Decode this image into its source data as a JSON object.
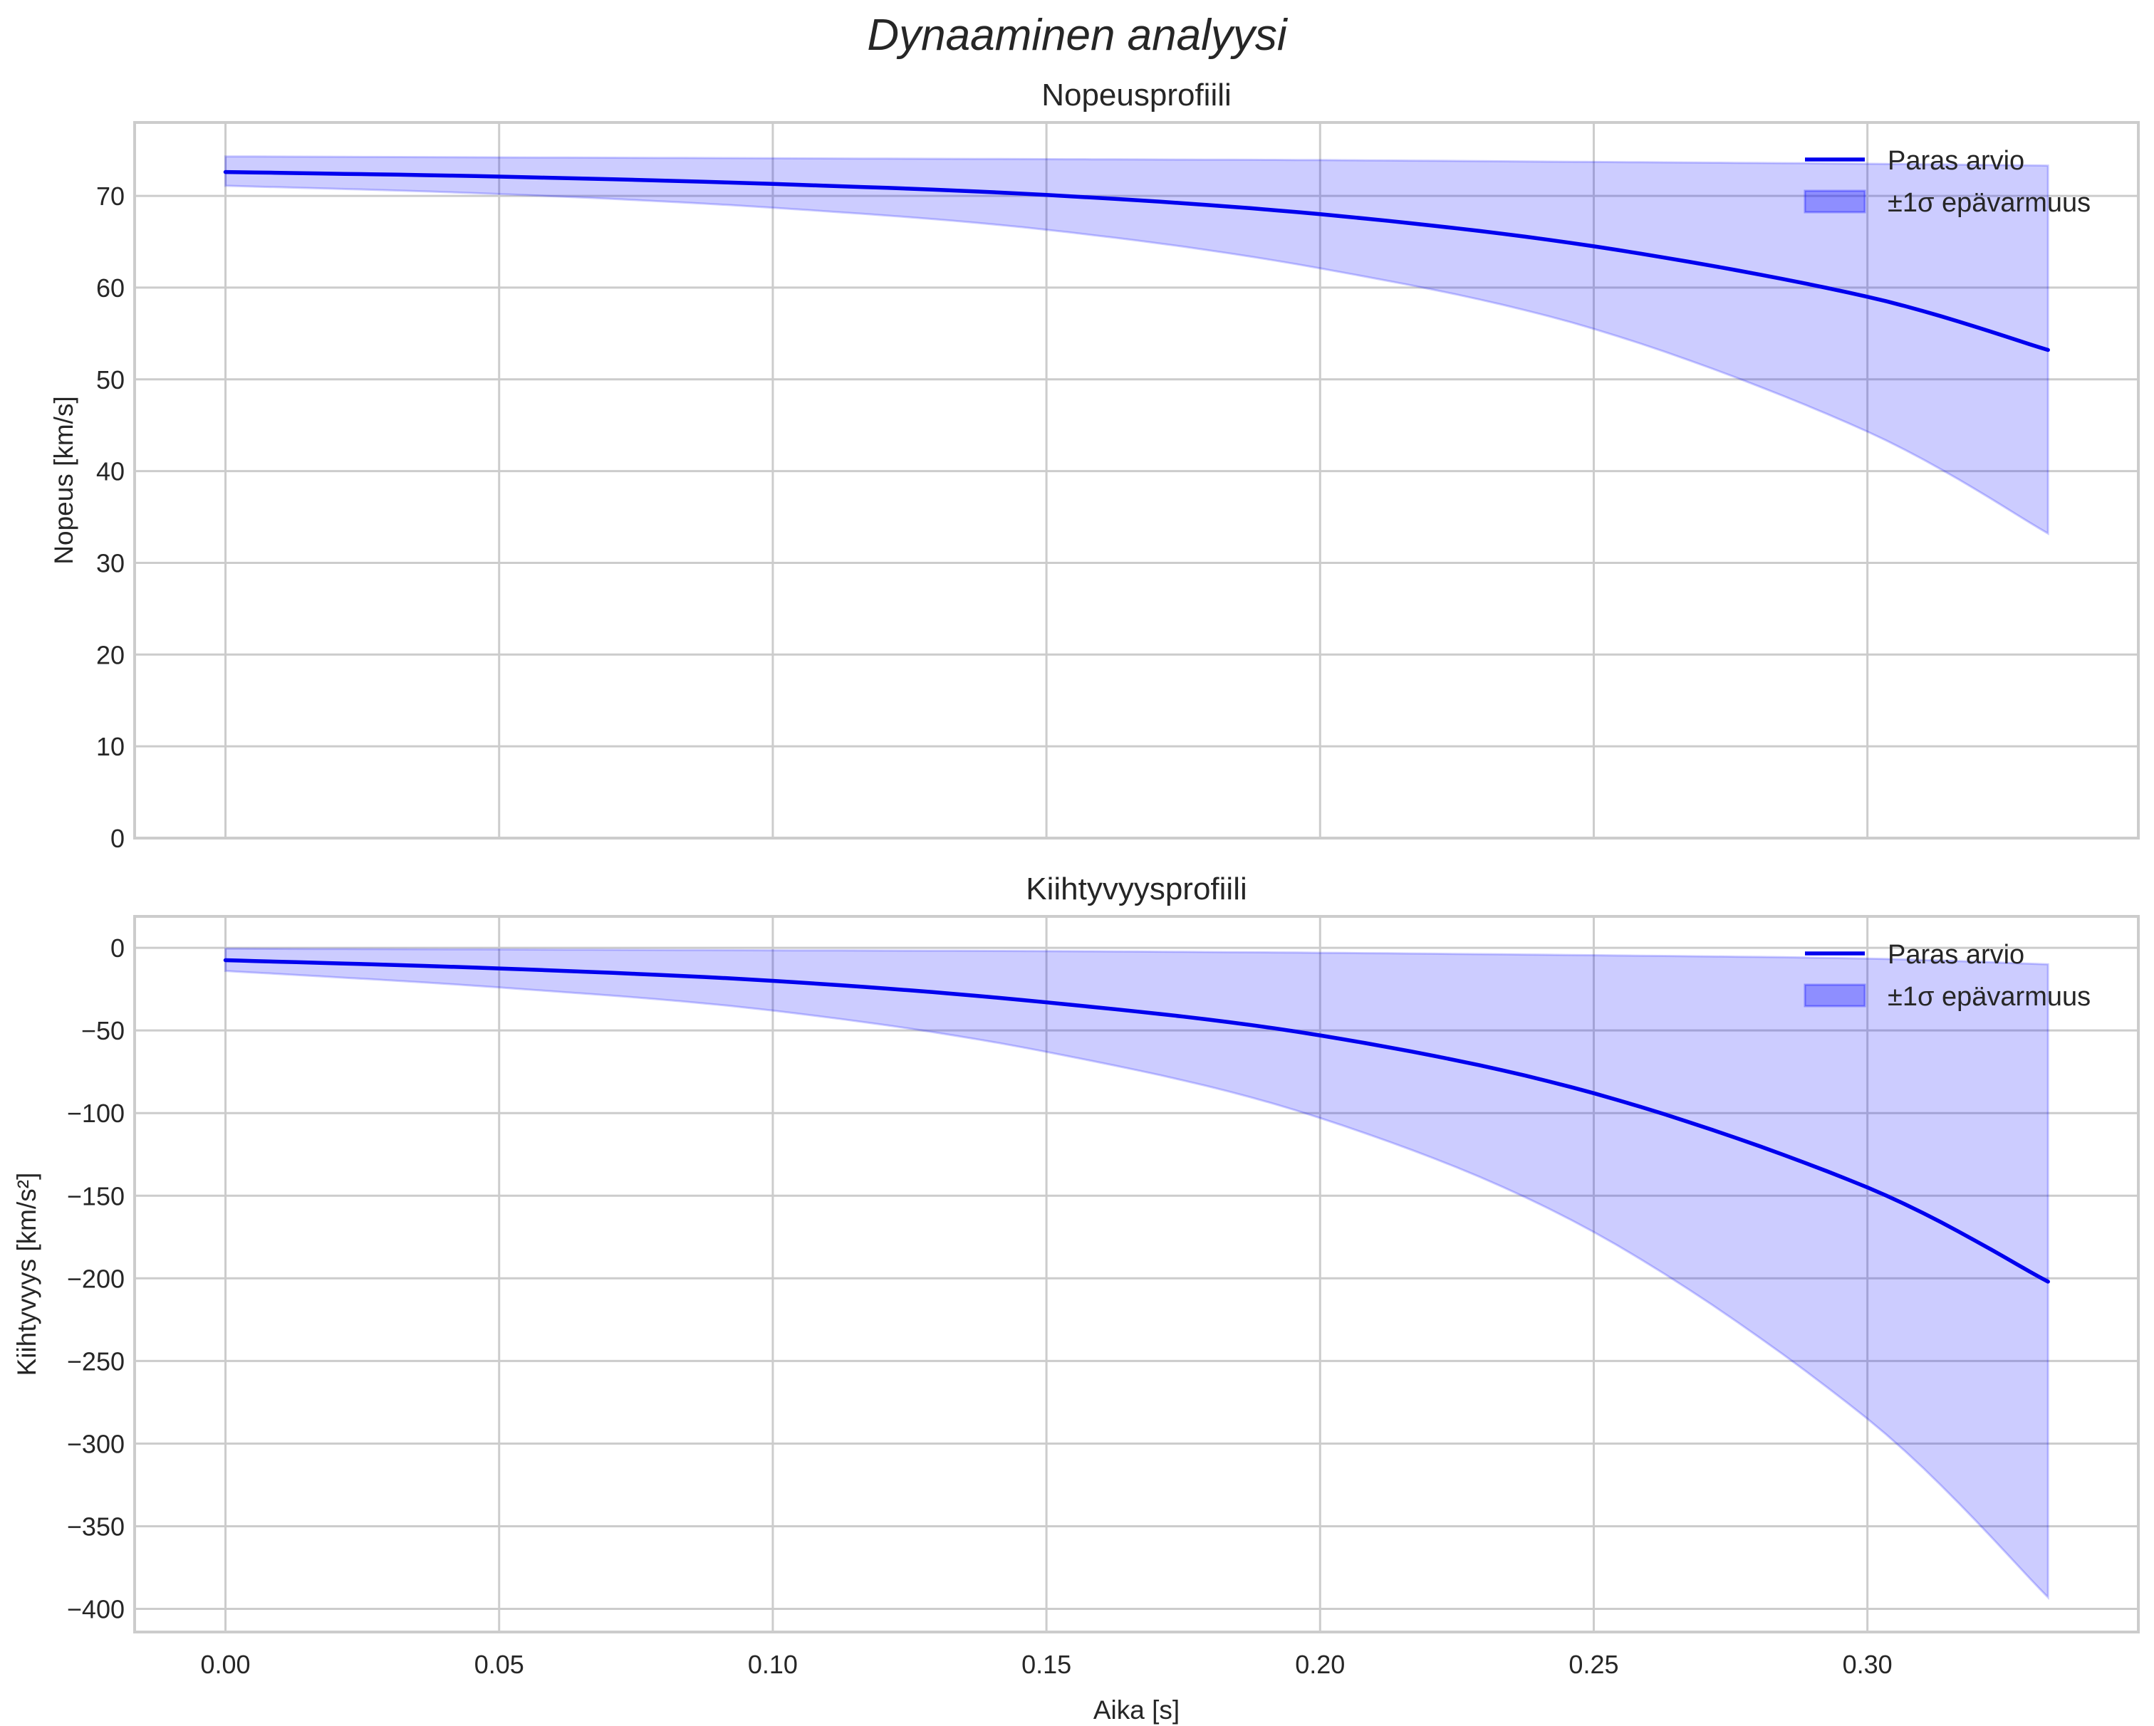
{
  "figure": {
    "suptitle": "Dynaaminen analyysi",
    "colors": {
      "line": "#0000ee",
      "band": "#0000ff",
      "band_alpha": 0.2,
      "grid": "#cccccc",
      "text": "#262626"
    }
  },
  "legend": {
    "line_label": "Paras arvio",
    "band_label": "±1σ epävarmuus"
  },
  "chart_data": [
    {
      "type": "line",
      "title": "Nopeusprofiili",
      "xlabel": "",
      "ylabel": "Nopeus [km/s]",
      "xlim": [
        -0.0166,
        0.3495
      ],
      "ylim": [
        0,
        78
      ],
      "grid": true,
      "legend_position": "upper right",
      "xticks": [
        "0.00",
        "0.05",
        "0.10",
        "0.15",
        "0.20",
        "0.25",
        "0.30"
      ],
      "xtick_values": [
        0,
        0.05,
        0.1,
        0.15,
        0.2,
        0.25,
        0.3
      ],
      "yticks": [
        "0",
        "10",
        "20",
        "30",
        "40",
        "50",
        "60",
        "70"
      ],
      "ytick_values": [
        0,
        10,
        20,
        30,
        40,
        50,
        60,
        70
      ],
      "x": [
        0,
        0.05,
        0.1,
        0.15,
        0.2,
        0.25,
        0.3,
        0.333
      ],
      "series": [
        {
          "name": "Paras arvio",
          "values": [
            72.6,
            72.1,
            71.3,
            70.1,
            68.0,
            64.5,
            59.0,
            53.2
          ]
        },
        {
          "name": "±1σ epävarmuus (upper)",
          "values": [
            74.3,
            74.2,
            74.1,
            74.0,
            73.9,
            73.7,
            73.5,
            73.3
          ]
        },
        {
          "name": "±1σ epävarmuus (lower)",
          "values": [
            71.1,
            70.2,
            68.7,
            66.3,
            62.1,
            55.5,
            44.3,
            33.2
          ]
        }
      ]
    },
    {
      "type": "line",
      "title": "Kiihtyvyysprofiili",
      "xlabel": "Aika [s]",
      "ylabel": "Kiihtyvyys [km/s²]",
      "xlim": [
        -0.0166,
        0.3495
      ],
      "ylim": [
        -414,
        19
      ],
      "grid": true,
      "legend_position": "upper right",
      "xticks": [
        "0.00",
        "0.05",
        "0.10",
        "0.15",
        "0.20",
        "0.25",
        "0.30"
      ],
      "xtick_values": [
        0,
        0.05,
        0.1,
        0.15,
        0.2,
        0.25,
        0.3
      ],
      "yticks": [
        "0",
        "−50",
        "−100",
        "−150",
        "−200",
        "−250",
        "−300",
        "−350",
        "−400"
      ],
      "ytick_values": [
        0,
        -50,
        -100,
        -150,
        -200,
        -250,
        -300,
        -350,
        -400
      ],
      "x": [
        0,
        0.05,
        0.1,
        0.15,
        0.2,
        0.25,
        0.3,
        0.333
      ],
      "series": [
        {
          "name": "Paras arvio",
          "values": [
            -7.5,
            -12.5,
            -20,
            -33,
            -53,
            -88,
            -145,
            -202
          ]
        },
        {
          "name": "±1σ epävarmuus (upper)",
          "values": [
            -0.5,
            -1,
            -1.5,
            -2,
            -3,
            -4.5,
            -6.5,
            -10
          ]
        },
        {
          "name": "±1σ epävarmuus (lower)",
          "values": [
            -14,
            -24,
            -38,
            -63,
            -103,
            -172,
            -285,
            -393
          ]
        }
      ]
    }
  ]
}
